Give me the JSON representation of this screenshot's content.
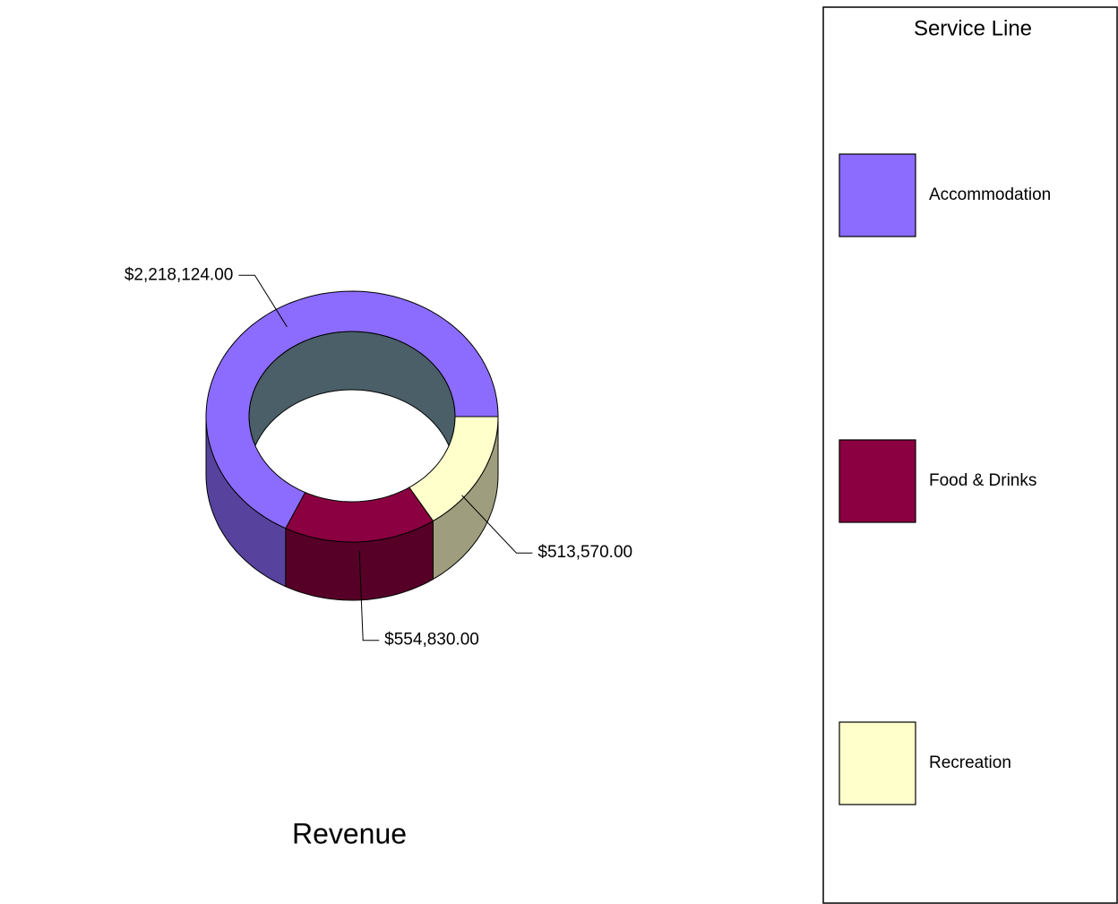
{
  "chart_data": {
    "type": "donut",
    "title": "Revenue",
    "legend_title": "Service Line",
    "legend_position": "right",
    "categories": [
      "Accommodation",
      "Food & Drinks",
      "Recreation"
    ],
    "values": [
      2218124,
      554830,
      513570
    ],
    "value_labels": [
      "$2,218,124.00",
      "$554,830.00",
      "$513,570.00"
    ],
    "colors": [
      "#8c6cff",
      "#8a0040",
      "#ffffcc"
    ]
  }
}
